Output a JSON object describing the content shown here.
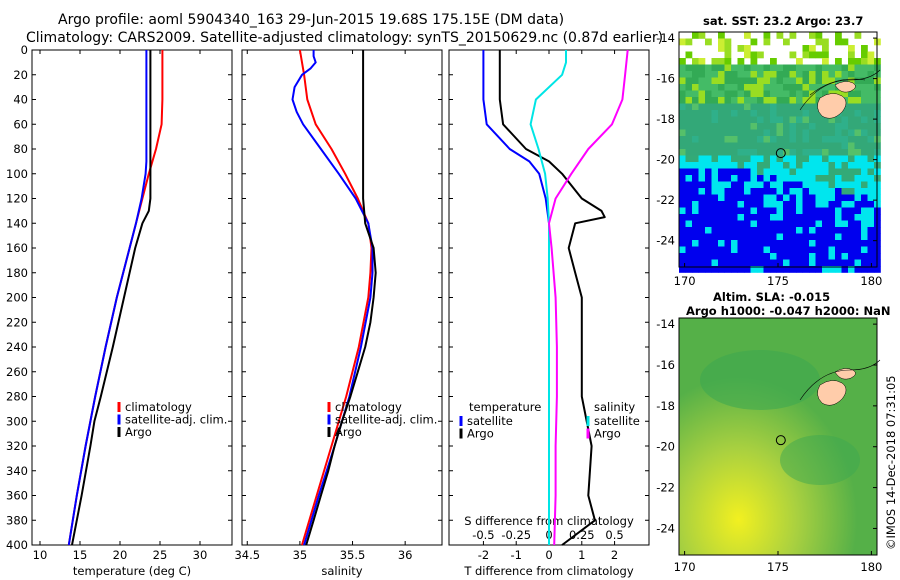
{
  "header": {
    "line1": "Argo profile: aoml 5904340_163 29-Jun-2015 19.68S 175.15E (DM data)",
    "line2": "Climatology: CARS2009. Satellite-adjusted climatology: synTS_20150629.nc (0.87d earlier)"
  },
  "credit": "©IMOS 14-Dec-2018 07:31:05",
  "colors": {
    "climatology": "#ff0000",
    "satellite": "#0000ff",
    "argo": "#000000",
    "sal_satellite": "#00e5e5",
    "sal_argo": "#ff00ff",
    "land": "#ffccaa"
  },
  "chart_data": [
    {
      "type": "line",
      "panel": "temperature",
      "xlabel": "temperature (deg C)",
      "ylabel": "",
      "xlim": [
        9,
        34
      ],
      "ylim": [
        400,
        0
      ],
      "xticks": [
        10,
        15,
        20,
        25,
        30
      ],
      "yticks": [
        0,
        20,
        40,
        60,
        80,
        100,
        120,
        140,
        160,
        180,
        200,
        220,
        240,
        260,
        280,
        300,
        320,
        340,
        360,
        380,
        400
      ],
      "legend": [
        "climatology",
        "satellite-adj. clim.",
        "Argo"
      ],
      "legend_position": "bottom-right",
      "series": [
        {
          "name": "climatology",
          "color_key": "climatology",
          "depth": [
            0,
            20,
            40,
            60,
            80,
            100,
            120,
            140,
            160,
            200,
            240,
            280,
            320,
            360,
            400
          ],
          "values": [
            25.3,
            25.3,
            25.3,
            25.2,
            24.5,
            23.6,
            22.8,
            22.0,
            21.2,
            19.6,
            18.2,
            16.9,
            15.7,
            14.6,
            13.6
          ]
        },
        {
          "name": "satellite-adj. clim.",
          "color_key": "satellite",
          "depth": [
            0,
            20,
            40,
            60,
            80,
            90,
            100,
            120,
            140,
            160,
            200,
            240,
            280,
            320,
            360,
            400
          ],
          "values": [
            23.3,
            23.3,
            23.3,
            23.3,
            23.3,
            23.3,
            23.2,
            22.7,
            22.0,
            21.2,
            19.6,
            18.2,
            16.9,
            15.7,
            14.6,
            13.6
          ]
        },
        {
          "name": "Argo",
          "color_key": "argo",
          "depth": [
            0,
            20,
            40,
            60,
            80,
            100,
            120,
            130,
            140,
            160,
            200,
            240,
            280,
            300,
            320,
            360,
            400
          ],
          "values": [
            23.8,
            23.8,
            23.8,
            23.8,
            23.8,
            23.8,
            23.8,
            23.6,
            22.8,
            21.9,
            20.5,
            19.1,
            17.6,
            16.8,
            16.3,
            15.2,
            14.0
          ]
        }
      ]
    },
    {
      "type": "line",
      "panel": "salinity",
      "xlabel": "salinity",
      "xlim": [
        34.45,
        36.35
      ],
      "ylim": [
        400,
        0
      ],
      "xticks": [
        34.5,
        35,
        35.5,
        36
      ],
      "legend": [
        "climatology",
        "satellite-adj. clim.",
        "Argo"
      ],
      "legend_position": "bottom-right",
      "series": [
        {
          "name": "climatology",
          "color_key": "climatology",
          "depth": [
            0,
            20,
            40,
            60,
            80,
            100,
            120,
            140,
            160,
            180,
            200,
            240,
            280,
            320,
            360,
            400
          ],
          "values": [
            35.0,
            35.04,
            35.07,
            35.15,
            35.3,
            35.43,
            35.55,
            35.65,
            35.68,
            35.67,
            35.65,
            35.56,
            35.44,
            35.3,
            35.16,
            35.02
          ]
        },
        {
          "name": "satellite-adj. clim.",
          "color_key": "satellite",
          "depth": [
            0,
            5,
            10,
            15,
            20,
            30,
            40,
            50,
            60,
            80,
            100,
            120,
            140,
            160,
            180,
            200,
            240,
            280,
            320,
            360,
            400
          ],
          "values": [
            35.13,
            35.13,
            35.15,
            35.1,
            35.02,
            34.95,
            34.93,
            34.97,
            35.03,
            35.2,
            35.37,
            35.53,
            35.65,
            35.69,
            35.69,
            35.67,
            35.58,
            35.47,
            35.33,
            35.18,
            35.04
          ]
        },
        {
          "name": "Argo",
          "color_key": "argo",
          "depth": [
            0,
            60,
            100,
            120,
            140,
            160,
            180,
            200,
            220,
            240,
            260,
            280,
            300,
            320,
            340,
            360,
            380,
            400
          ],
          "values": [
            35.6,
            35.6,
            35.6,
            35.6,
            35.62,
            35.7,
            35.72,
            35.7,
            35.67,
            35.62,
            35.55,
            35.48,
            35.4,
            35.33,
            35.27,
            35.2,
            35.13,
            35.06
          ]
        }
      ]
    },
    {
      "type": "line",
      "panel": "difference",
      "xlabel": "T difference from climatology",
      "xlabel_top": "S difference from climatology",
      "xlim": [
        -3.05,
        3.05
      ],
      "ylim": [
        400,
        0
      ],
      "xticks": [
        -2,
        -1,
        0,
        1,
        2
      ],
      "xticks_top_values": [
        -0.5,
        -0.25,
        0,
        0.25,
        0.5
      ],
      "xticks_top_labels": [
        "-0.5",
        "-0.25",
        "0",
        "0.25",
        "0.5"
      ],
      "legend_left": [
        "temperature",
        "satellite",
        "Argo"
      ],
      "legend_right": [
        "salinity",
        "satellite",
        "Argo"
      ],
      "series": [
        {
          "name": "temperature satellite",
          "color_key": "satellite",
          "units": "deg C",
          "depth": [
            0,
            20,
            40,
            60,
            80,
            90,
            100,
            120,
            140,
            160,
            200,
            240,
            280,
            320,
            360,
            400
          ],
          "values": [
            -2.0,
            -2.0,
            -2.0,
            -1.9,
            -1.2,
            -0.6,
            -0.3,
            -0.1,
            0.0,
            0.0,
            0.0,
            0.0,
            0.0,
            0.0,
            0.0,
            0.0
          ]
        },
        {
          "name": "temperature Argo",
          "color_key": "argo",
          "units": "deg C",
          "depth": [
            0,
            20,
            40,
            60,
            80,
            90,
            100,
            120,
            130,
            135,
            140,
            160,
            180,
            200,
            240,
            280,
            320,
            360,
            380,
            400
          ],
          "values": [
            -1.5,
            -1.5,
            -1.5,
            -1.4,
            -0.7,
            0.0,
            0.4,
            1.0,
            1.6,
            1.7,
            0.8,
            0.6,
            0.8,
            1.0,
            1.0,
            1.0,
            1.3,
            1.2,
            1.4,
            0.4
          ]
        },
        {
          "name": "salinity satellite",
          "color_key": "sal_satellite",
          "units": "psu",
          "depth": [
            0,
            10,
            20,
            40,
            60,
            80,
            100,
            120,
            140,
            160,
            200,
            240,
            280,
            320,
            360,
            400
          ],
          "values": [
            0.13,
            0.13,
            0.1,
            -0.1,
            -0.14,
            -0.08,
            -0.03,
            -0.01,
            0.0,
            0.0,
            0.0,
            0.0,
            0.0,
            0.0,
            0.0,
            0.0
          ]
        },
        {
          "name": "salinity Argo",
          "color_key": "sal_argo",
          "units": "psu",
          "depth": [
            0,
            20,
            40,
            60,
            80,
            100,
            120,
            140,
            160,
            200,
            240,
            280,
            320,
            360,
            400
          ],
          "values": [
            0.6,
            0.58,
            0.56,
            0.48,
            0.3,
            0.17,
            0.05,
            0.0,
            0.02,
            0.05,
            0.06,
            0.06,
            0.05,
            0.05,
            0.04
          ]
        }
      ]
    },
    {
      "type": "heatmap",
      "panel": "map-sst",
      "title": "sat. SST: 23.2 Argo: 23.7",
      "xticks": [
        170,
        175,
        180
      ],
      "yticks": [
        -14,
        -16,
        -18,
        -20,
        -22,
        -24
      ],
      "xlim": [
        169.7,
        180.3
      ],
      "ylim": [
        -25.3,
        -13.7
      ],
      "argo_position": {
        "lon": 175.15,
        "lat": -19.68
      }
    },
    {
      "type": "heatmap",
      "panel": "map-sla",
      "title_line1": "Altim. SLA: -0.015",
      "title_line2": "Argo h1000: -0.047 h2000: NaN",
      "xticks": [
        170,
        175,
        180
      ],
      "yticks": [
        -14,
        -16,
        -18,
        -20,
        -22,
        -24
      ],
      "xlim": [
        169.7,
        180.3
      ],
      "ylim": [
        -25.3,
        -13.7
      ],
      "argo_position": {
        "lon": 175.15,
        "lat": -19.68
      }
    }
  ]
}
